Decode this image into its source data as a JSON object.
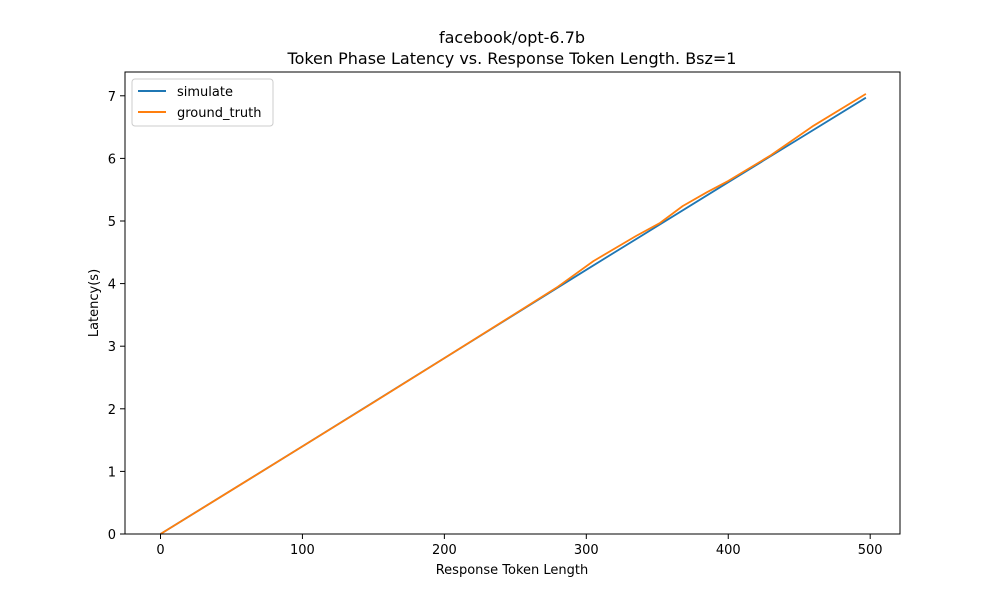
{
  "chart_data": {
    "type": "line",
    "title": "facebook/opt-6.7b",
    "subtitle": "Token Phase Latency vs. Response Token Length. Bsz=1",
    "xlabel": "Response Token Length",
    "ylabel": "Latency(s)",
    "xlim": [
      -25,
      521
    ],
    "ylim": [
      0,
      7.38
    ],
    "xticks": [
      0,
      100,
      200,
      300,
      400,
      500
    ],
    "yticks": [
      0,
      1,
      2,
      3,
      4,
      5,
      6,
      7
    ],
    "grid": false,
    "legend_position": "top-left",
    "series": [
      {
        "name": "simulate",
        "color": "#1f77b4",
        "x": [
          0,
          100,
          200,
          300,
          400,
          497
        ],
        "y": [
          0.0,
          1.4,
          2.81,
          4.22,
          5.62,
          6.97
        ]
      },
      {
        "name": "ground_truth",
        "color": "#ff7f0e",
        "x": [
          0,
          50,
          100,
          150,
          200,
          250,
          280,
          305,
          335,
          352,
          368,
          385,
          400,
          430,
          460,
          497
        ],
        "y": [
          0.0,
          0.7,
          1.4,
          2.1,
          2.81,
          3.52,
          3.95,
          4.36,
          4.76,
          4.97,
          5.24,
          5.46,
          5.64,
          6.05,
          6.52,
          7.03
        ]
      }
    ]
  }
}
